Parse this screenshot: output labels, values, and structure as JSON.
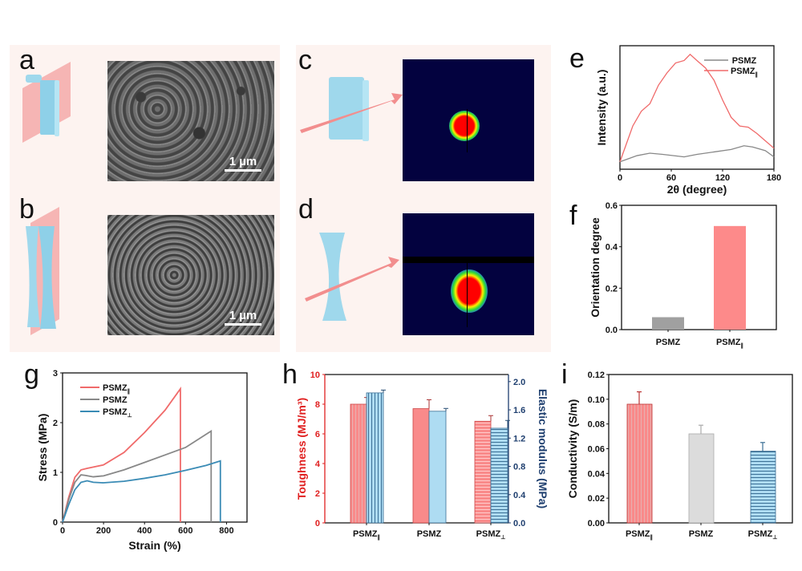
{
  "figure": {
    "panel_labels": {
      "a": "a",
      "b": "b",
      "c": "c",
      "d": "d",
      "e": "e",
      "f": "f",
      "g": "g",
      "h": "h",
      "i": "i"
    },
    "scale_bar_a": "1 µm",
    "scale_bar_b": "1 µm",
    "colors": {
      "parallel": "#f06a6a",
      "psmz": "#888888",
      "perp": "#3a8bb5",
      "bar_red": "#f98a8a",
      "bar_blue": "#aedcf2",
      "bar_gray": "#dcdcdc",
      "toughness_axis": "#e02020",
      "modulus_axis": "#1f3f6f"
    }
  },
  "chart_data": [
    {
      "id": "e",
      "type": "line",
      "title": "",
      "xlabel": "2θ (degree)",
      "ylabel": "Intensity (a.u.)",
      "xlim": [
        0,
        180
      ],
      "ylim": [
        0,
        1
      ],
      "xticks": [
        "0",
        "60",
        "120",
        "180"
      ],
      "legend_position": "top-right",
      "series": [
        {
          "name": "PSMZ",
          "sub": "",
          "x": [
            0,
            20,
            35,
            50,
            75,
            90,
            110,
            130,
            145,
            155,
            170,
            180
          ],
          "y": [
            0.06,
            0.11,
            0.13,
            0.12,
            0.1,
            0.12,
            0.14,
            0.16,
            0.19,
            0.18,
            0.15,
            0.1
          ]
        },
        {
          "name": "PSMZ",
          "sub": "∥",
          "x": [
            0,
            15,
            25,
            35,
            45,
            55,
            65,
            75,
            82,
            90,
            100,
            110,
            120,
            130,
            140,
            150,
            160,
            170,
            180
          ],
          "y": [
            0.06,
            0.35,
            0.47,
            0.53,
            0.68,
            0.78,
            0.86,
            0.88,
            0.93,
            0.88,
            0.82,
            0.72,
            0.56,
            0.42,
            0.35,
            0.34,
            0.29,
            0.23,
            0.17
          ]
        }
      ]
    },
    {
      "id": "f",
      "type": "bar",
      "title": "",
      "xlabel": "",
      "ylabel": "Orientation degree",
      "ylim": [
        0,
        0.6
      ],
      "yticks": [
        "0.0",
        "0.2",
        "0.4",
        "0.6"
      ],
      "categories": [
        {
          "name": "PSMZ",
          "sub": ""
        },
        {
          "name": "PSMZ",
          "sub": "∥"
        }
      ],
      "values": [
        0.06,
        0.5
      ]
    },
    {
      "id": "g",
      "type": "line",
      "title": "",
      "xlabel": "Strain (%)",
      "ylabel": "Stress (MPa)",
      "xlim": [
        0,
        900
      ],
      "ylim": [
        0,
        3
      ],
      "xticks": [
        "0",
        "200",
        "400",
        "600",
        "800"
      ],
      "yticks": [
        "0",
        "1",
        "2",
        "3"
      ],
      "legend_position": "top-left",
      "series": [
        {
          "name": "PSMZ",
          "sub": "∥",
          "x": [
            0,
            30,
            60,
            90,
            120,
            200,
            300,
            400,
            500,
            575,
            575
          ],
          "y": [
            0,
            0.5,
            0.9,
            1.05,
            1.08,
            1.15,
            1.4,
            1.8,
            2.25,
            2.68,
            0
          ]
        },
        {
          "name": "PSMZ",
          "sub": "",
          "x": [
            0,
            30,
            60,
            90,
            110,
            150,
            200,
            300,
            400,
            500,
            600,
            725,
            725
          ],
          "y": [
            0,
            0.45,
            0.8,
            0.95,
            0.94,
            0.91,
            0.93,
            1.05,
            1.2,
            1.35,
            1.5,
            1.83,
            0
          ]
        },
        {
          "name": "PSMZ",
          "sub": "⊥",
          "x": [
            0,
            30,
            60,
            90,
            120,
            150,
            200,
            300,
            400,
            500,
            600,
            700,
            770,
            770
          ],
          "y": [
            0,
            0.35,
            0.65,
            0.8,
            0.83,
            0.8,
            0.79,
            0.82,
            0.88,
            0.95,
            1.04,
            1.14,
            1.23,
            0
          ]
        }
      ]
    },
    {
      "id": "h",
      "type": "bar",
      "title": "",
      "xlabel": "",
      "ylabel": "Toughness (MJ/m³)",
      "ylabel_right": "Elastic modulus (MPa)",
      "ylim": [
        0,
        10
      ],
      "ylim_right": [
        0,
        2.1
      ],
      "yticks": [
        "0",
        "2",
        "4",
        "6",
        "8",
        "10"
      ],
      "yticks_right": [
        "0.0",
        "0.4",
        "0.8",
        "1.2",
        "1.6",
        "2.0"
      ],
      "categories": [
        {
          "name": "PSMZ",
          "sub": "∥"
        },
        {
          "name": "PSMZ",
          "sub": ""
        },
        {
          "name": "PSMZ",
          "sub": "⊥"
        }
      ],
      "series": [
        {
          "name": "Toughness",
          "axis": "left",
          "values": [
            8.0,
            7.7,
            6.85
          ],
          "errors": [
            0.45,
            0.6,
            0.38
          ]
        },
        {
          "name": "Elastic modulus",
          "axis": "right",
          "values": [
            1.84,
            1.58,
            1.34
          ],
          "errors": [
            0.04,
            0.04,
            0.11
          ]
        }
      ]
    },
    {
      "id": "i",
      "type": "bar",
      "title": "",
      "xlabel": "",
      "ylabel": "Conductivity (S/m)",
      "ylim": [
        0,
        0.12
      ],
      "yticks": [
        "0.00",
        "0.02",
        "0.04",
        "0.06",
        "0.08",
        "0.10",
        "0.12"
      ],
      "categories": [
        {
          "name": "PSMZ",
          "sub": "∥"
        },
        {
          "name": "PSMZ",
          "sub": ""
        },
        {
          "name": "PSMZ",
          "sub": "⊥"
        }
      ],
      "values": [
        0.096,
        0.072,
        0.058
      ],
      "errors": [
        0.01,
        0.007,
        0.007
      ]
    }
  ]
}
